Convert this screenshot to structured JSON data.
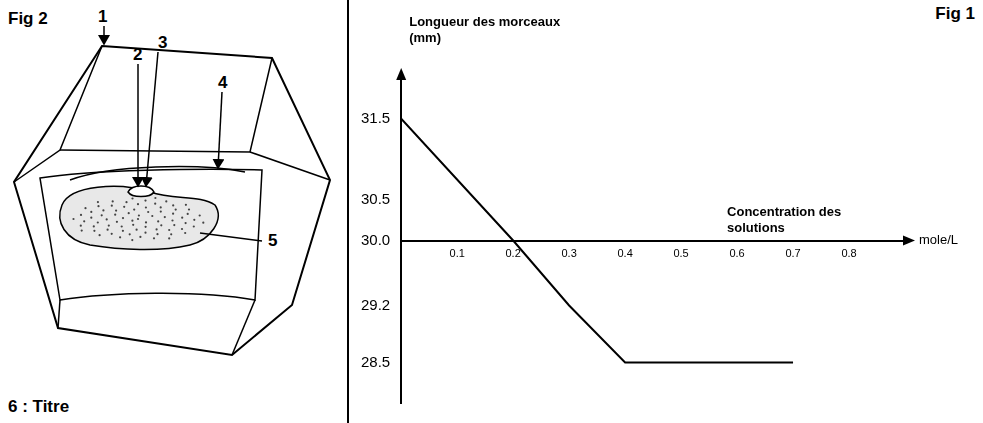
{
  "diagram": {
    "title": "Fig 2",
    "labels": [
      "1",
      "2",
      "3",
      "4",
      "5"
    ],
    "caption": "6 : Titre"
  },
  "chart_data": {
    "type": "line",
    "title": "Fig 1",
    "y_label": "Longueur des morceaux (mm)",
    "x_label": "Concentration des solutions",
    "x_unit": "mole/L",
    "x": [
      0,
      0.2,
      0.3,
      0.4,
      0.5,
      0.6,
      0.7
    ],
    "values": [
      31.5,
      30.0,
      29.2,
      28.5,
      28.5,
      28.5,
      28.5
    ],
    "color": "#000000",
    "xlim": [
      0,
      0.9
    ],
    "ylim": [
      28,
      32
    ],
    "xticks": [
      0.1,
      0.2,
      0.3,
      0.4,
      0.5,
      0.6,
      0.7,
      0.8
    ],
    "yticks": [
      28.5,
      29.2,
      {
        "value": 30,
        "label": "30.0"
      },
      30.5,
      31.5
    ],
    "grid": false
  }
}
